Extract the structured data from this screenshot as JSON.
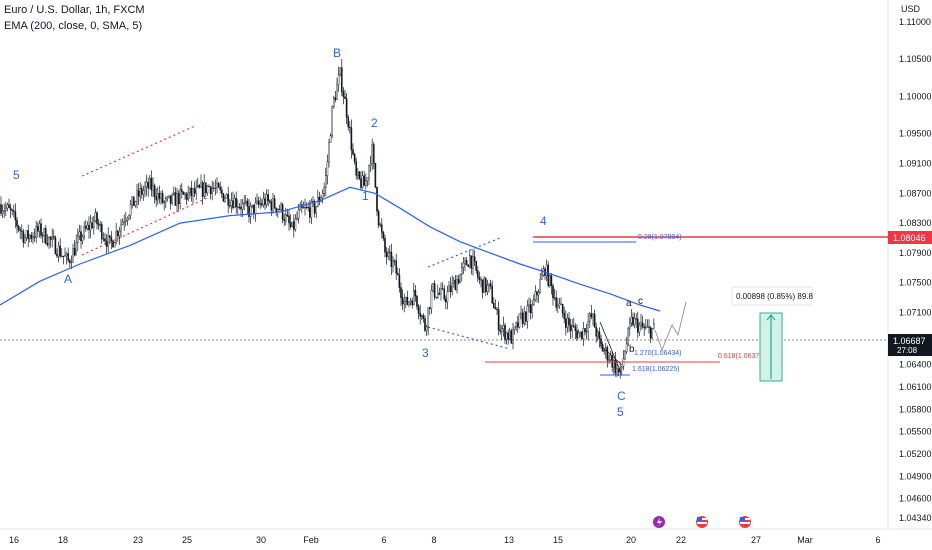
{
  "header": {
    "symbol_line": "Euro / U.S. Dollar, 1h, FXCM",
    "indicator_line": "EMA (200, close, 0, SMA, 5)",
    "currency": "USD"
  },
  "colors": {
    "up": "#131722",
    "ema": "#2962ff",
    "wave": "#2962ff",
    "red": "#f23645",
    "green": "#089981",
    "dotted": "#f23645"
  },
  "chart_data": {
    "type": "candlestick",
    "title": "",
    "ylim": [
      1.0434,
      1.11
    ],
    "y_ticks": [
      "1.11000",
      "1.10500",
      "1.10000",
      "1.09500",
      "1.09100",
      "1.08700",
      "1.08300",
      "1.07900",
      "1.07500",
      "1.07100",
      "1.06400",
      "1.06100",
      "1.05800",
      "1.05500",
      "1.05200",
      "1.04900",
      "1.04600",
      "1.04340"
    ],
    "x_ticks": [
      "16",
      "18",
      "23",
      "25",
      "30",
      "Feb",
      "6",
      "8",
      "13",
      "15",
      "20",
      "22",
      "27",
      "Mar",
      "6"
    ],
    "price_labels": [
      {
        "text": "1.08046",
        "value": 1.08046,
        "color": "#f23645"
      },
      {
        "text": "1.06687",
        "subtext": "27:08",
        "value": 1.06687,
        "color": "#131722"
      }
    ],
    "wave_labels": [
      "5",
      "A",
      "B",
      "2",
      "1",
      "3",
      "4",
      "a",
      "c",
      "b",
      "C",
      "5"
    ],
    "fib_labels": [
      {
        "text": "0.28(1.07994)",
        "color": "#2962ff"
      },
      {
        "text": "0.618(1.06377)",
        "color": "#f23645"
      },
      {
        "text": "1.618(1.06225)",
        "color": "#2962ff"
      },
      {
        "text": "1.270(1.06434)",
        "color": "#2962ff"
      }
    ],
    "measure_label": "0.00898 (0.85%) 89.8",
    "series": [
      {
        "name": "EMA (200, close, 0, SMA, 5)",
        "kind": "line"
      }
    ],
    "ohlc_path_keypoints": [
      [
        0,
        1.0855
      ],
      [
        10,
        1.0845
      ],
      [
        25,
        1.081
      ],
      [
        40,
        1.082
      ],
      [
        55,
        1.08
      ],
      [
        68,
        1.0778
      ],
      [
        80,
        1.081
      ],
      [
        95,
        1.0835
      ],
      [
        110,
        1.08
      ],
      [
        125,
        1.084
      ],
      [
        140,
        1.087
      ],
      [
        150,
        1.088
      ],
      [
        165,
        1.0855
      ],
      [
        180,
        1.0865
      ],
      [
        195,
        1.087
      ],
      [
        210,
        1.088
      ],
      [
        220,
        1.087
      ],
      [
        235,
        1.086
      ],
      [
        250,
        1.0845
      ],
      [
        265,
        1.086
      ],
      [
        280,
        1.085
      ],
      [
        292,
        1.082
      ],
      [
        300,
        1.0845
      ],
      [
        315,
        1.085
      ],
      [
        325,
        1.088
      ],
      [
        333,
        1.099
      ],
      [
        340,
        1.103
      ],
      [
        348,
        1.097
      ],
      [
        356,
        1.089
      ],
      [
        365,
        1.088
      ],
      [
        372,
        1.093
      ],
      [
        378,
        1.084
      ],
      [
        385,
        1.079
      ],
      [
        395,
        1.077
      ],
      [
        405,
        1.072
      ],
      [
        415,
        1.0735
      ],
      [
        425,
        1.069
      ],
      [
        432,
        1.074
      ],
      [
        445,
        1.073
      ],
      [
        460,
        1.076
      ],
      [
        470,
        1.0785
      ],
      [
        480,
        1.075
      ],
      [
        490,
        1.074
      ],
      [
        500,
        1.069
      ],
      [
        512,
        1.0675
      ],
      [
        520,
        1.07
      ],
      [
        532,
        1.0715
      ],
      [
        545,
        1.077
      ],
      [
        552,
        1.074
      ],
      [
        560,
        1.0715
      ],
      [
        570,
        1.069
      ],
      [
        580,
        1.068
      ],
      [
        592,
        1.0705
      ],
      [
        600,
        1.0665
      ],
      [
        610,
        1.065
      ],
      [
        620,
        1.0625
      ],
      [
        625,
        1.066
      ],
      [
        632,
        1.07
      ],
      [
        640,
        1.069
      ],
      [
        648,
        1.0685
      ],
      [
        655,
        1.0688
      ]
    ],
    "ema_path_keypoints": [
      [
        0,
        1.072
      ],
      [
        40,
        1.0752
      ],
      [
        80,
        1.0775
      ],
      [
        130,
        1.08
      ],
      [
        180,
        1.083
      ],
      [
        230,
        1.084
      ],
      [
        280,
        1.0845
      ],
      [
        320,
        1.086
      ],
      [
        350,
        1.0878
      ],
      [
        375,
        1.087
      ],
      [
        400,
        1.085
      ],
      [
        430,
        1.0825
      ],
      [
        460,
        1.0805
      ],
      [
        490,
        1.079
      ],
      [
        520,
        1.0775
      ],
      [
        550,
        1.0762
      ],
      [
        580,
        1.0748
      ],
      [
        610,
        1.0735
      ],
      [
        640,
        1.072
      ],
      [
        660,
        1.0712
      ]
    ]
  }
}
